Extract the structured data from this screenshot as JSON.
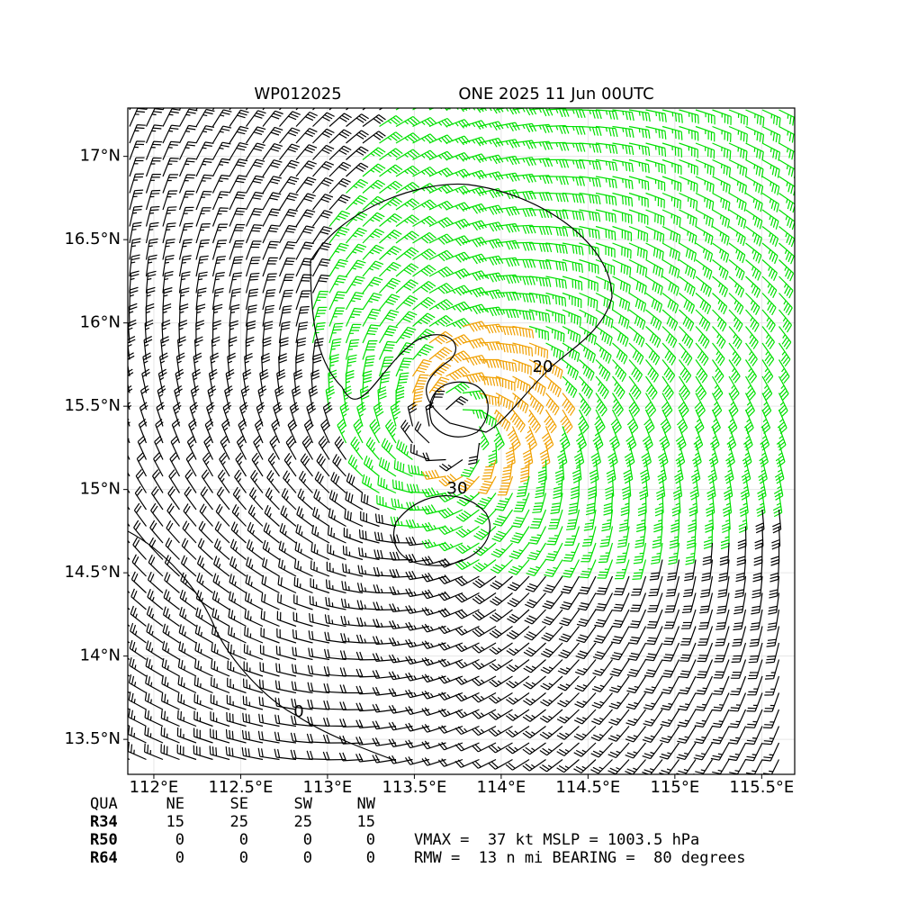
{
  "title_left": "WP012025",
  "title_right": "ONE 2025 11 Jun 00UTC",
  "xlim": [
    111.85,
    115.69
  ],
  "ylim": [
    13.29,
    17.29
  ],
  "xticks": [
    {
      "value": 112,
      "label": "112°E"
    },
    {
      "value": 112.5,
      "label": "112.5°E"
    },
    {
      "value": 113,
      "label": "113°E"
    },
    {
      "value": 113.5,
      "label": "113.5°E"
    },
    {
      "value": 114,
      "label": "114°E"
    },
    {
      "value": 114.5,
      "label": "114.5°E"
    },
    {
      "value": 115,
      "label": "115°E"
    },
    {
      "value": 115.5,
      "label": "115.5°E"
    }
  ],
  "yticks": [
    {
      "value": 13.5,
      "label": "13.5°N"
    },
    {
      "value": 14,
      "label": "14°N"
    },
    {
      "value": 14.5,
      "label": "14.5°N"
    },
    {
      "value": 15,
      "label": "15°N"
    },
    {
      "value": 15.5,
      "label": "15.5°N"
    },
    {
      "value": 16,
      "label": "16°N"
    },
    {
      "value": 16.5,
      "label": "16.5°N"
    },
    {
      "value": 17,
      "label": "17°N"
    }
  ],
  "contour_labels": [
    "20",
    "30",
    "0"
  ],
  "table": {
    "header": [
      "QUA",
      "NE",
      "SE",
      "SW",
      "NW"
    ],
    "rows": [
      [
        "R34",
        15,
        25,
        25,
        15
      ],
      [
        "R50",
        0,
        0,
        0,
        0
      ],
      [
        "R64",
        0,
        0,
        0,
        0
      ]
    ]
  },
  "info": [
    "VMAX =  37 kt MSLP = 1003.5 hPa",
    "RMW =  13 n mi BEARING =  80 degrees"
  ]
}
